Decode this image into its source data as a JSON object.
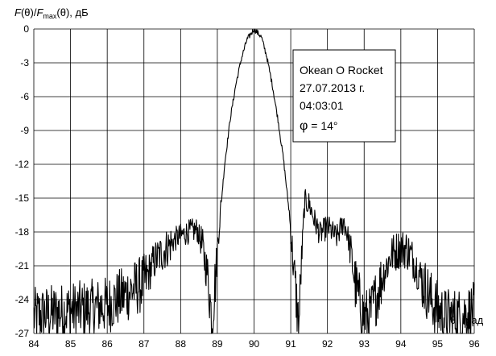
{
  "chart_data": {
    "type": "line",
    "ylabel_parts": {
      "f": "F",
      "theta": "(θ)/",
      "fmax": "F",
      "sub": "max",
      "rest": "(θ), дБ"
    },
    "xlabel": "θ, град",
    "xlim": [
      84,
      96
    ],
    "ylim": [
      -27,
      0
    ],
    "xticks": [
      "84",
      "85",
      "86",
      "87",
      "88",
      "89",
      "90",
      "91",
      "92",
      "93",
      "94",
      "95",
      "96"
    ],
    "yticks": [
      "0",
      "-3",
      "-6",
      "-9",
      "-12",
      "-15",
      "-18",
      "-21",
      "-24",
      "-27"
    ],
    "grid": true,
    "annotation": {
      "line1": "Okean O Rocket",
      "line2": "27.07.2013 г.",
      "line3": "04:03:01",
      "line4_sym": "φ",
      "line4_val": " = 14°"
    },
    "series_keypoints": [
      [
        84.0,
        -25.5
      ],
      [
        84.5,
        -25.2
      ],
      [
        85.0,
        -25.0
      ],
      [
        85.5,
        -24.8
      ],
      [
        86.0,
        -24.5
      ],
      [
        86.5,
        -23.5
      ],
      [
        87.0,
        -22.5
      ],
      [
        87.3,
        -20.5
      ],
      [
        87.6,
        -19.5
      ],
      [
        87.9,
        -18.5
      ],
      [
        88.2,
        -18.0
      ],
      [
        88.45,
        -17.8
      ],
      [
        88.6,
        -19.5
      ],
      [
        88.75,
        -22.0
      ],
      [
        88.85,
        -26.0
      ],
      [
        88.95,
        -22.0
      ],
      [
        89.05,
        -17.5
      ],
      [
        89.2,
        -12.0
      ],
      [
        89.35,
        -8.0
      ],
      [
        89.5,
        -5.0
      ],
      [
        89.65,
        -2.7
      ],
      [
        89.8,
        -1.0
      ],
      [
        90.0,
        0.0
      ],
      [
        90.2,
        -0.7
      ],
      [
        90.35,
        -2.5
      ],
      [
        90.5,
        -5.0
      ],
      [
        90.65,
        -8.0
      ],
      [
        90.8,
        -11.5
      ],
      [
        90.95,
        -16.0
      ],
      [
        91.1,
        -22.0
      ],
      [
        91.22,
        -26.5
      ],
      [
        91.3,
        -20.0
      ],
      [
        91.38,
        -15.3
      ],
      [
        91.5,
        -15.5
      ],
      [
        91.65,
        -17.0
      ],
      [
        91.8,
        -18.2
      ],
      [
        92.0,
        -17.5
      ],
      [
        92.25,
        -18.5
      ],
      [
        92.45,
        -17.0
      ],
      [
        92.6,
        -19.0
      ],
      [
        92.75,
        -22.5
      ],
      [
        92.9,
        -24.5
      ],
      [
        93.0,
        -25.5
      ],
      [
        93.15,
        -25.5
      ],
      [
        93.35,
        -23.5
      ],
      [
        93.55,
        -21.5
      ],
      [
        93.75,
        -20.0
      ],
      [
        93.95,
        -19.5
      ],
      [
        94.15,
        -19.5
      ],
      [
        94.35,
        -20.5
      ],
      [
        94.6,
        -22.5
      ],
      [
        94.9,
        -24.5
      ],
      [
        95.2,
        -25.5
      ],
      [
        95.6,
        -25.5
      ],
      [
        96.0,
        -25.0
      ]
    ]
  }
}
